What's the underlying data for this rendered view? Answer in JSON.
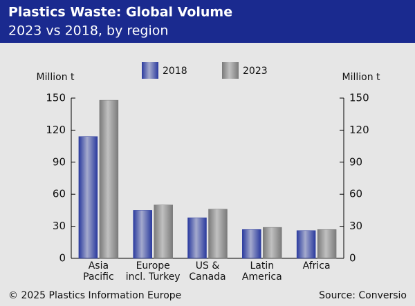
{
  "chart_data": {
    "type": "bar",
    "title": "Plastics Waste: Global Volume",
    "subtitle": "2023 vs 2018, by region",
    "ylabel": "Million t",
    "y2label": "Million t",
    "categories": [
      "Asia\nPacific",
      "Europe\nincl. Turkey",
      "US &\nCanada",
      "Latin\nAmerica",
      "Africa"
    ],
    "series": [
      {
        "name": "2018",
        "color": "#2a3a9e",
        "values": [
          114,
          45,
          38,
          27,
          26
        ]
      },
      {
        "name": "2023",
        "color": "#7a7a7a",
        "values": [
          148,
          50,
          46,
          29,
          27
        ]
      }
    ],
    "ylim": [
      0,
      150
    ],
    "yticks": [
      0,
      30,
      60,
      90,
      120,
      150
    ],
    "y2lim": [
      0,
      150
    ],
    "y2ticks": [
      0,
      30,
      60,
      90,
      120,
      150
    ],
    "grid": false,
    "footer_left": "© 2025 Plastics Information Europe",
    "footer_right": "Source: Conversio"
  }
}
